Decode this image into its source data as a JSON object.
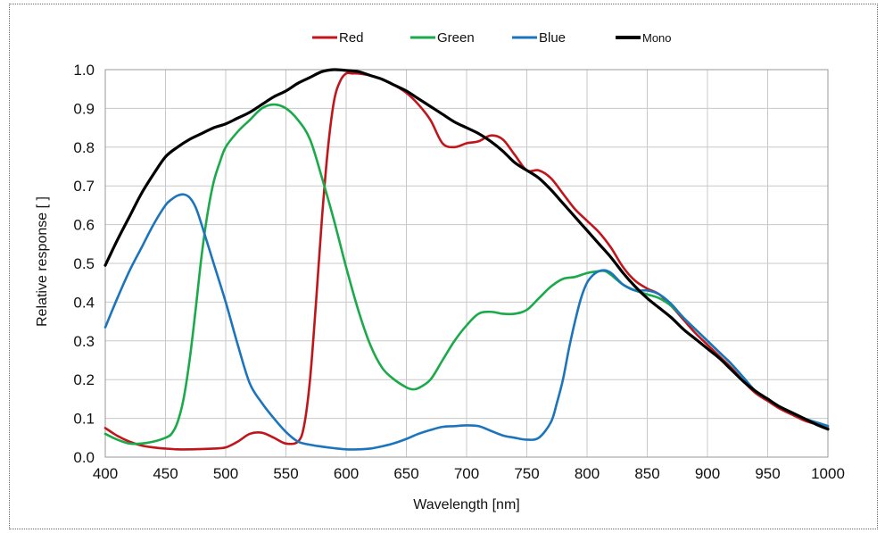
{
  "chart_data": {
    "type": "line",
    "xlabel": "Wavelength [nm]",
    "ylabel": "Relative response [ ]",
    "xlim": [
      400,
      1000
    ],
    "ylim": [
      0.0,
      1.0
    ],
    "xticks": [
      "400",
      "450",
      "500",
      "550",
      "600",
      "650",
      "700",
      "750",
      "800",
      "850",
      "900",
      "950",
      "1000"
    ],
    "yticks": [
      "0.0",
      "0.1",
      "0.2",
      "0.3",
      "0.4",
      "0.5",
      "0.6",
      "0.7",
      "0.8",
      "0.9",
      "1.0"
    ],
    "grid": true,
    "legend_position": "top",
    "series": [
      {
        "name": "Red",
        "color": "#c0151b",
        "x": [
          400,
          410,
          420,
          430,
          440,
          450,
          460,
          470,
          480,
          490,
          500,
          510,
          520,
          530,
          540,
          550,
          560,
          565,
          570,
          575,
          580,
          585,
          590,
          595,
          600,
          605,
          610,
          620,
          630,
          640,
          650,
          660,
          670,
          680,
          690,
          700,
          710,
          720,
          730,
          740,
          750,
          760,
          770,
          780,
          790,
          800,
          810,
          820,
          830,
          840,
          850,
          860,
          870,
          880,
          890,
          900,
          910,
          920,
          930,
          940,
          950,
          960,
          970,
          980,
          990,
          1000
        ],
        "y": [
          0.075,
          0.055,
          0.04,
          0.03,
          0.025,
          0.022,
          0.02,
          0.02,
          0.021,
          0.022,
          0.025,
          0.04,
          0.06,
          0.063,
          0.05,
          0.035,
          0.04,
          0.08,
          0.2,
          0.4,
          0.62,
          0.8,
          0.92,
          0.97,
          0.99,
          0.99,
          0.99,
          0.985,
          0.975,
          0.96,
          0.94,
          0.91,
          0.87,
          0.81,
          0.8,
          0.81,
          0.815,
          0.83,
          0.82,
          0.78,
          0.74,
          0.74,
          0.72,
          0.68,
          0.64,
          0.61,
          0.58,
          0.54,
          0.49,
          0.455,
          0.435,
          0.42,
          0.39,
          0.355,
          0.32,
          0.29,
          0.26,
          0.23,
          0.195,
          0.165,
          0.145,
          0.125,
          0.11,
          0.095,
          0.085,
          0.075
        ]
      },
      {
        "name": "Green",
        "color": "#1aaa4a",
        "x": [
          400,
          410,
          420,
          430,
          440,
          450,
          455,
          460,
          465,
          470,
          475,
          480,
          485,
          490,
          495,
          500,
          510,
          520,
          530,
          540,
          550,
          560,
          570,
          580,
          590,
          600,
          610,
          620,
          630,
          640,
          650,
          655,
          660,
          670,
          680,
          690,
          700,
          710,
          720,
          730,
          740,
          750,
          760,
          770,
          780,
          790,
          800,
          810,
          815,
          820,
          830,
          840,
          850,
          860,
          870,
          880,
          890,
          900,
          910,
          920,
          930,
          940,
          950,
          960,
          970,
          980,
          990,
          1000
        ],
        "y": [
          0.06,
          0.045,
          0.035,
          0.035,
          0.04,
          0.05,
          0.06,
          0.09,
          0.15,
          0.25,
          0.38,
          0.52,
          0.63,
          0.71,
          0.76,
          0.8,
          0.84,
          0.87,
          0.9,
          0.91,
          0.9,
          0.87,
          0.82,
          0.72,
          0.61,
          0.49,
          0.38,
          0.29,
          0.23,
          0.2,
          0.18,
          0.175,
          0.178,
          0.2,
          0.25,
          0.3,
          0.34,
          0.37,
          0.375,
          0.37,
          0.37,
          0.38,
          0.41,
          0.44,
          0.46,
          0.465,
          0.475,
          0.48,
          0.48,
          0.47,
          0.445,
          0.43,
          0.42,
          0.41,
          0.39,
          0.36,
          0.33,
          0.3,
          0.27,
          0.24,
          0.205,
          0.17,
          0.15,
          0.13,
          0.115,
          0.1,
          0.09,
          0.08
        ]
      },
      {
        "name": "Blue",
        "color": "#1c75bc",
        "x": [
          400,
          410,
          420,
          430,
          440,
          450,
          455,
          460,
          465,
          470,
          475,
          480,
          490,
          500,
          510,
          520,
          530,
          540,
          550,
          560,
          570,
          580,
          590,
          600,
          610,
          620,
          630,
          640,
          650,
          660,
          670,
          680,
          690,
          700,
          710,
          720,
          730,
          740,
          750,
          760,
          770,
          775,
          780,
          785,
          790,
          795,
          800,
          805,
          810,
          815,
          820,
          825,
          830,
          840,
          850,
          860,
          870,
          880,
          890,
          900,
          910,
          920,
          930,
          940,
          950,
          960,
          970,
          980,
          990,
          1000
        ],
        "y": [
          0.335,
          0.41,
          0.48,
          0.54,
          0.6,
          0.65,
          0.665,
          0.675,
          0.678,
          0.67,
          0.645,
          0.6,
          0.5,
          0.4,
          0.29,
          0.19,
          0.14,
          0.1,
          0.065,
          0.04,
          0.032,
          0.027,
          0.023,
          0.02,
          0.02,
          0.022,
          0.028,
          0.036,
          0.047,
          0.06,
          0.07,
          0.078,
          0.08,
          0.082,
          0.08,
          0.068,
          0.056,
          0.05,
          0.045,
          0.05,
          0.09,
          0.14,
          0.2,
          0.28,
          0.35,
          0.41,
          0.45,
          0.47,
          0.48,
          0.482,
          0.475,
          0.46,
          0.445,
          0.43,
          0.43,
          0.42,
          0.395,
          0.36,
          0.33,
          0.3,
          0.27,
          0.24,
          0.205,
          0.17,
          0.15,
          0.13,
          0.115,
          0.1,
          0.09,
          0.08
        ]
      },
      {
        "name": "Mono",
        "color": "#000000",
        "x": [
          400,
          410,
          420,
          430,
          440,
          450,
          460,
          470,
          480,
          490,
          500,
          510,
          520,
          530,
          540,
          550,
          560,
          570,
          580,
          590,
          600,
          610,
          620,
          630,
          640,
          650,
          660,
          670,
          680,
          690,
          700,
          710,
          720,
          730,
          740,
          750,
          760,
          770,
          780,
          790,
          800,
          810,
          820,
          830,
          840,
          850,
          860,
          870,
          880,
          890,
          900,
          910,
          920,
          930,
          940,
          950,
          960,
          970,
          980,
          990,
          1000
        ],
        "y": [
          0.495,
          0.56,
          0.62,
          0.68,
          0.73,
          0.775,
          0.8,
          0.82,
          0.835,
          0.85,
          0.86,
          0.875,
          0.89,
          0.91,
          0.93,
          0.945,
          0.965,
          0.98,
          0.995,
          1.0,
          0.998,
          0.995,
          0.985,
          0.975,
          0.96,
          0.945,
          0.925,
          0.905,
          0.885,
          0.865,
          0.85,
          0.835,
          0.815,
          0.79,
          0.76,
          0.74,
          0.72,
          0.69,
          0.655,
          0.62,
          0.585,
          0.55,
          0.515,
          0.475,
          0.44,
          0.41,
          0.385,
          0.36,
          0.33,
          0.305,
          0.28,
          0.255,
          0.225,
          0.195,
          0.17,
          0.15,
          0.13,
          0.115,
          0.1,
          0.085,
          0.072
        ]
      }
    ]
  }
}
